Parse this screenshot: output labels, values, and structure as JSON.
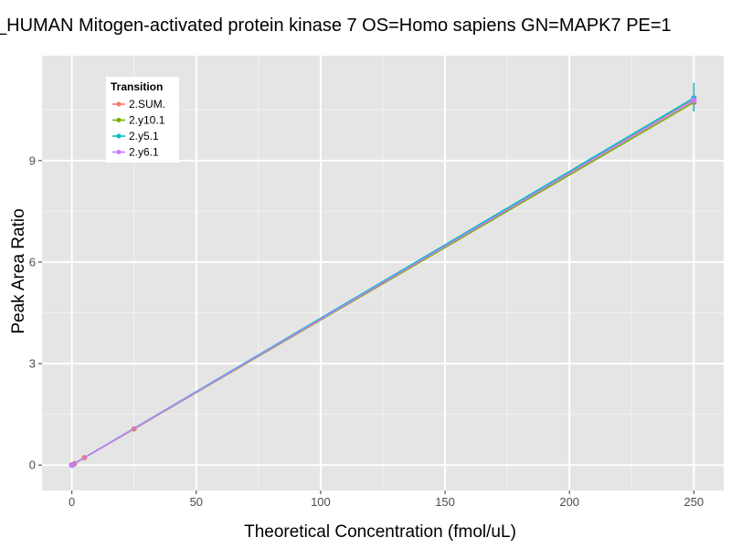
{
  "chart_data": {
    "type": "line",
    "title": "_HUMAN Mitogen-activated protein kinase 7 OS=Homo sapiens GN=MAPK7 PE=1",
    "xlabel": "Theoretical Concentration (fmol/uL)",
    "ylabel": "Peak Area Ratio",
    "xlim": [
      -12,
      262
    ],
    "ylim": [
      -0.75,
      12.1
    ],
    "xticks": [
      0,
      50,
      100,
      150,
      200,
      250
    ],
    "yticks": [
      0,
      3,
      6,
      9
    ],
    "grid": true,
    "legend": {
      "title": "Transition",
      "placement": "top-left"
    },
    "series": [
      {
        "name": "2.SUM.",
        "color": "#F8766D",
        "x": [
          0,
          0.5,
          1,
          5,
          25,
          250
        ],
        "y": [
          0.0,
          0.02,
          0.04,
          0.22,
          1.07,
          10.8
        ],
        "error_at_max": [
          10.65,
          10.95
        ]
      },
      {
        "name": "2.y10.1",
        "color": "#7CAE00",
        "x": [
          0,
          250
        ],
        "y": [
          0.0,
          10.72
        ],
        "error_at_max": [
          10.45,
          11.0
        ]
      },
      {
        "name": "2.y5.1",
        "color": "#00BFC4",
        "x": [
          0,
          250
        ],
        "y": [
          0.0,
          10.85
        ],
        "error_at_max": [
          10.45,
          11.3
        ]
      },
      {
        "name": "2.y6.1",
        "color": "#C77CFF",
        "x": [
          0,
          250
        ],
        "y": [
          0.0,
          10.78
        ],
        "error_at_max": [
          10.6,
          10.95
        ]
      }
    ]
  }
}
